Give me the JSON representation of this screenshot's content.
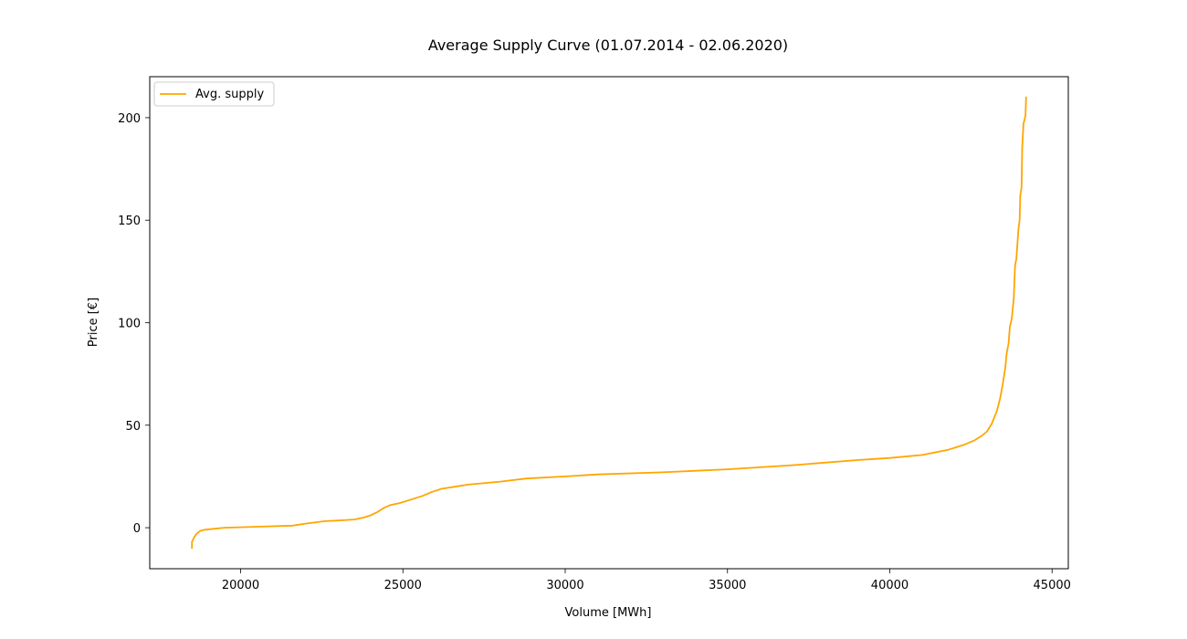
{
  "chart_data": {
    "type": "line",
    "title": "Average Supply Curve (01.07.2014 - 02.06.2020)",
    "xlabel": "Volume [MWh]",
    "ylabel": "Price [€]",
    "xlim": [
      17200,
      45500
    ],
    "ylim": [
      -20,
      220
    ],
    "xticks": [
      20000,
      25000,
      30000,
      35000,
      40000,
      45000
    ],
    "yticks": [
      0,
      50,
      100,
      150,
      200
    ],
    "grid": false,
    "legend_position": "top-left",
    "series": [
      {
        "name": "Avg. supply",
        "color": "#ffa500",
        "points": [
          [
            18500,
            -10
          ],
          [
            18500,
            -7
          ],
          [
            18560,
            -5
          ],
          [
            18640,
            -3
          ],
          [
            18760,
            -1.5
          ],
          [
            18900,
            -1
          ],
          [
            19200,
            -0.5
          ],
          [
            19500,
            0
          ],
          [
            20500,
            0.5
          ],
          [
            21600,
            1
          ],
          [
            22000,
            2
          ],
          [
            22600,
            3.2
          ],
          [
            23000,
            3.5
          ],
          [
            23500,
            4
          ],
          [
            23800,
            5
          ],
          [
            24000,
            6
          ],
          [
            24200,
            7.5
          ],
          [
            24400,
            9.5
          ],
          [
            24600,
            11
          ],
          [
            24900,
            12
          ],
          [
            25200,
            13.5
          ],
          [
            25600,
            15.5
          ],
          [
            25900,
            17.5
          ],
          [
            26200,
            19
          ],
          [
            26600,
            20
          ],
          [
            27000,
            21
          ],
          [
            28000,
            22.5
          ],
          [
            28800,
            24
          ],
          [
            30000,
            25
          ],
          [
            31000,
            26
          ],
          [
            33000,
            27
          ],
          [
            35000,
            28.5
          ],
          [
            37000,
            30.5
          ],
          [
            39000,
            33
          ],
          [
            40000,
            34
          ],
          [
            41000,
            35.5
          ],
          [
            41800,
            38
          ],
          [
            42300,
            40.5
          ],
          [
            42600,
            42.5
          ],
          [
            42850,
            45
          ],
          [
            43000,
            47
          ],
          [
            43150,
            51
          ],
          [
            43300,
            57
          ],
          [
            43400,
            63
          ],
          [
            43480,
            70
          ],
          [
            43560,
            78
          ],
          [
            43600,
            85
          ],
          [
            43660,
            90
          ],
          [
            43700,
            98
          ],
          [
            43760,
            102
          ],
          [
            43820,
            112
          ],
          [
            43860,
            128
          ],
          [
            43900,
            131
          ],
          [
            43960,
            145
          ],
          [
            44000,
            150
          ],
          [
            44020,
            162
          ],
          [
            44060,
            166
          ],
          [
            44080,
            185
          ],
          [
            44120,
            197
          ],
          [
            44180,
            201
          ],
          [
            44200,
            210
          ]
        ]
      }
    ]
  }
}
